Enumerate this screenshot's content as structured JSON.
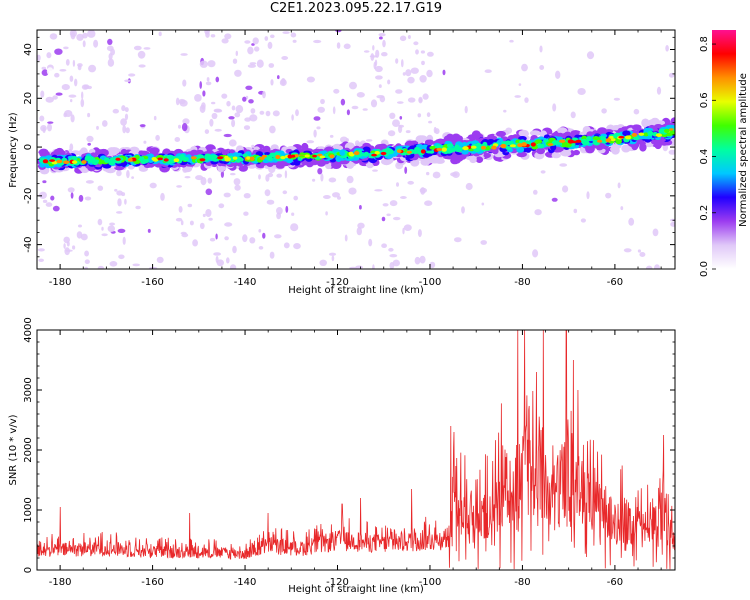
{
  "title": "C2E1.2023.095.22.17.G19",
  "chart_data": [
    {
      "type": "heatmap",
      "xlabel": "Height of straight line (km)",
      "ylabel": "Frequency (Hz)",
      "xlim": [
        -185,
        -47
      ],
      "ylim": [
        -50,
        48
      ],
      "xticks": [
        -180,
        -160,
        -140,
        -120,
        -100,
        -80,
        -60
      ],
      "yticks": [
        -40,
        -20,
        0,
        20,
        40
      ],
      "colorbar": {
        "label": "Normalized spectral amplitude",
        "range": [
          0.0,
          0.85
        ],
        "ticks": [
          0.0,
          0.2,
          0.4,
          0.6,
          0.8
        ],
        "colormap": [
          "#ffffff",
          "#e0c8f8",
          "#9c3cf0",
          "#2000ff",
          "#00c8ff",
          "#00ffa0",
          "#40ff00",
          "#e8ff00",
          "#ff9000",
          "#ff0000",
          "#ff1090"
        ]
      },
      "ridge": {
        "x": [
          -185,
          -160,
          -140,
          -120,
          -110,
          -100,
          -90,
          -80,
          -70,
          -60,
          -50,
          -48
        ],
        "y": [
          -6,
          -5,
          -4.5,
          -3.5,
          -2.5,
          -1,
          0,
          1,
          2,
          3.5,
          5.5,
          6.5
        ]
      },
      "scatter_bands_x": [
        -181,
        -176,
        -169,
        -163,
        -156,
        -150,
        -146,
        -141,
        -136,
        -131,
        -120,
        -113,
        -109,
        -103
      ]
    },
    {
      "type": "line",
      "xlabel": "Height of straight line (km)",
      "ylabel": "SNR (10 * v/v)",
      "xlim": [
        -185,
        -47
      ],
      "ylim": [
        0,
        4000
      ],
      "xticks": [
        -180,
        -160,
        -140,
        -120,
        -100,
        -80,
        -60
      ],
      "yticks": [
        0,
        1000,
        2000,
        3000,
        4000
      ],
      "color": "#e8282a",
      "envelope": {
        "x": [
          -185,
          -170,
          -160,
          -150,
          -140,
          -135,
          -128,
          -120,
          -110,
          -100,
          -96,
          -95,
          -90,
          -86,
          -84,
          -82,
          -80,
          -78,
          -76,
          -74,
          -72,
          -70,
          -68,
          -66,
          -64,
          -60,
          -56,
          -52,
          -50,
          -48,
          -47
        ],
        "y": [
          600,
          650,
          550,
          550,
          480,
          750,
          650,
          900,
          800,
          900,
          950,
          2200,
          1700,
          2200,
          3100,
          2500,
          4000,
          2900,
          4000,
          2300,
          2900,
          3700,
          2800,
          2400,
          2100,
          1900,
          1600,
          1400,
          2200,
          1300,
          1000
        ]
      },
      "spikes": [
        [
          -180,
          1050
        ],
        [
          -152,
          950
        ],
        [
          -135,
          950
        ],
        [
          -119,
          1100
        ],
        [
          -115,
          1200
        ],
        [
          -104,
          1350
        ],
        [
          -95.5,
          2400
        ],
        [
          -94.8,
          2300
        ],
        [
          -81,
          4000
        ],
        [
          -79.5,
          4000
        ],
        [
          -77,
          3300
        ],
        [
          -75.5,
          4000
        ],
        [
          -70.5,
          4000
        ],
        [
          -69,
          3500
        ],
        [
          -68,
          3000
        ],
        [
          -49.5,
          2250
        ]
      ]
    }
  ]
}
